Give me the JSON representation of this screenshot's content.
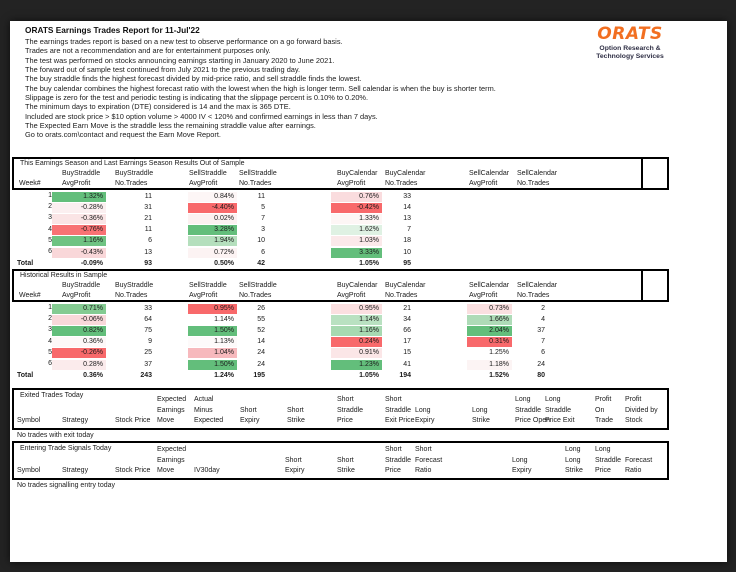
{
  "report": {
    "title": "ORATS Earnings Trades Report for 11-Jul'22",
    "intro_lines": [
      "The earnings trades report is based on a new test to observe performance on a go forward basis.",
      "Trades are not a recommendation and are for entertainment purposes only.",
      "The test was performed on stocks announcing earnings starting in January 2020 to June 2021.",
      "The forward out of sample test continued from July 2021 to the previous trading day.",
      "The buy straddle finds the highest forecast divided by mid-price ratio, and sell straddle finds the lowest.",
      "The buy calendar combines the highest forecast ratio with the lowest when the high is longer term. Sell calendar is when the buy is shorter term.",
      "Slippage is zero for the test and periodic testing is indicating that the slippage percent is 0.10% to 0.20%.",
      "The minimum days to expiration (DTE) considered is 14 and the max is 365 DTE.",
      "Included are stock price > $10 option volume > 4000 IV < 120% and confirmed earnings in less than 7 days.",
      "The Expected Earn Move is the straddle less the remaining straddle value after earnings.",
      "Go to orats.com\\contact and request the Earn Move Report."
    ]
  },
  "logo": {
    "brand": "ORATS",
    "brand_color": "#F26F21",
    "tagline": [
      "Option Research &",
      "Technology Services"
    ]
  },
  "colors": {
    "strong_green": "#63BE7B",
    "strong_red": "#F8696B",
    "border": "#000000",
    "page_bg": "#FFFFFF",
    "backdrop": "#232323"
  },
  "summary_tables": [
    {
      "title": "This Earnings Season and Last Earnings Season Results Out of Sample",
      "group_headers": [
        "BuyStraddle",
        "BuyStraddle",
        "SellStraddle",
        "SellStraddle",
        "BuyCalendar",
        "BuyCalendar",
        "SellCalendar",
        "SellCalendar"
      ],
      "sub_headers": [
        "Week#",
        "AvgProfit",
        "No.Trades",
        "AvgProfit",
        "No.Trades",
        "AvgProfit",
        "No.Trades",
        "AvgProfit",
        "No.Trades"
      ],
      "rows": [
        {
          "week": "1",
          "values": [
            "1.32%",
            "11",
            "0.84%",
            "11",
            "0.76%",
            "33",
            "",
            ""
          ],
          "fills": [
            "#63BE7B",
            null,
            "#FDF6F6",
            null,
            "#FADCDE",
            null,
            null,
            null
          ]
        },
        {
          "week": "2",
          "values": [
            "-0.28%",
            "31",
            "-4.40%",
            "5",
            "-0.42%",
            "14",
            "",
            ""
          ],
          "fills": [
            "#FBEFF0",
            null,
            "#F8696B",
            null,
            "#F8696B",
            null,
            null,
            null
          ]
        },
        {
          "week": "3",
          "values": [
            "-0.36%",
            "21",
            "0.02%",
            "7",
            "1.33%",
            "13",
            "",
            ""
          ],
          "fills": [
            "#FAE4E5",
            null,
            "#FCF1F1",
            null,
            "#FDF6F5",
            null,
            null,
            null
          ]
        },
        {
          "week": "4",
          "values": [
            "-0.76%",
            "11",
            "3.28%",
            "3",
            "1.62%",
            "7",
            "",
            ""
          ],
          "fills": [
            "#F87274",
            null,
            "#63BE7B",
            null,
            "#DFF1E3",
            null,
            null,
            null
          ]
        },
        {
          "week": "5",
          "values": [
            "1.16%",
            "6",
            "1.94%",
            "10",
            "1.03%",
            "18",
            "",
            ""
          ],
          "fills": [
            "#6FC382",
            null,
            "#B5DFBD",
            null,
            "#FBE9EA",
            null,
            null,
            null
          ]
        },
        {
          "week": "6",
          "values": [
            "-0.43%",
            "13",
            "0.72%",
            "6",
            "3.33%",
            "10",
            "",
            ""
          ],
          "fills": [
            "#F9D7D9",
            null,
            "#FCF3F3",
            null,
            "#63BE7B",
            null,
            null,
            null
          ]
        }
      ],
      "total": {
        "week": "Total",
        "values": [
          "-0.09%",
          "93",
          "0.50%",
          "42",
          "1.05%",
          "95",
          "",
          ""
        ]
      }
    },
    {
      "title": "Historical Results in Sample",
      "group_headers": [
        "BuyStraddle",
        "BuyStraddle",
        "SellStraddle",
        "SellStraddle",
        "BuyCalendar",
        "BuyCalendar",
        "SellCalendar",
        "SellCalendar"
      ],
      "sub_headers": [
        "Week#",
        "AvgProfit",
        "No.Trades",
        "AvgProfit",
        "No.Trades",
        "AvgProfit",
        "No.Trades",
        "AvgProfit",
        "No.Trades"
      ],
      "rows": [
        {
          "week": "1",
          "values": [
            "0.71%",
            "33",
            "0.95%",
            "26",
            "0.95%",
            "21",
            "0.73%",
            "2"
          ],
          "fills": [
            "#84CB92",
            null,
            "#F8696B",
            null,
            "#FBDFE0",
            null,
            "#FADFE0",
            null
          ]
        },
        {
          "week": "2",
          "values": [
            "-0.06%",
            "64",
            "1.14%",
            "55",
            "1.14%",
            "34",
            "1.66%",
            "4"
          ],
          "fills": [
            "#F9D8DA",
            null,
            null,
            null,
            "#B9E1C1",
            null,
            "#AEDBB7",
            null
          ]
        },
        {
          "week": "3",
          "values": [
            "0.82%",
            "75",
            "1.50%",
            "52",
            "1.16%",
            "66",
            "2.04%",
            "37"
          ],
          "fills": [
            "#63BE7B",
            null,
            "#63BE7B",
            null,
            "#A7D9B1",
            null,
            "#63BE7B",
            null
          ]
        },
        {
          "week": "4",
          "values": [
            "0.36%",
            "9",
            "1.13%",
            "14",
            "0.24%",
            "17",
            "0.31%",
            "7"
          ],
          "fills": [
            "#FDF8F8",
            null,
            "#FDFAFA",
            null,
            "#F8696B",
            null,
            "#F8696B",
            null
          ]
        },
        {
          "week": "5",
          "values": [
            "-0.26%",
            "25",
            "1.04%",
            "24",
            "0.91%",
            "15",
            "1.25%",
            "6"
          ],
          "fills": [
            "#F8696B",
            null,
            "#F7B9BD",
            null,
            "#FBE6E7",
            null,
            null,
            null
          ]
        },
        {
          "week": "6",
          "values": [
            "0.28%",
            "37",
            "1.50%",
            "24",
            "1.23%",
            "41",
            "1.18%",
            "24"
          ],
          "fills": [
            "#FBEBEC",
            null,
            "#63BE7B",
            null,
            "#63BE7B",
            null,
            "#FCF4F4",
            null
          ]
        }
      ],
      "total": {
        "week": "Total",
        "values": [
          "0.36%",
          "243",
          "1.24%",
          "195",
          "1.05%",
          "194",
          "1.52%",
          "80"
        ]
      }
    }
  ],
  "trade_tables": [
    {
      "title": "Exited Trades Today",
      "columns": [
        [
          "Symbol"
        ],
        [
          "Strategy"
        ],
        [
          "Stock Price"
        ],
        [
          "Expected",
          "Earnings",
          "Move"
        ],
        [
          "Actual",
          "Minus",
          "Expected"
        ],
        [
          "Short",
          "Expiry"
        ],
        [
          "Short",
          "Strike"
        ],
        [
          "Short",
          "Straddle",
          "Price"
        ],
        [
          "Short",
          "Straddle",
          "Exit Price"
        ],
        [
          "Long",
          "Expiry"
        ],
        [
          "Long",
          "Strike"
        ],
        [
          "Long",
          "Straddle",
          "Price Open"
        ],
        [
          "Long",
          "Straddle",
          "Price Exit"
        ],
        [
          "Profit",
          "On",
          "Trade"
        ],
        [
          "Profit",
          "Divided by",
          "Stock"
        ]
      ],
      "note": "No trades with exit today"
    },
    {
      "title": "Entering Trade Signals Today",
      "columns": [
        [
          "Symbol"
        ],
        [
          "Strategy"
        ],
        [
          "Stock Price"
        ],
        [
          "Expected",
          "Earnings",
          "Move"
        ],
        [
          "IV30day"
        ],
        [
          "Short",
          "Expiry"
        ],
        [
          "Short",
          "Strike"
        ],
        [
          "Short",
          "Straddle",
          "Price"
        ],
        [
          "Short",
          "Forecast",
          "Ratio"
        ],
        [
          "Long",
          "Expiry"
        ],
        [
          "Long",
          "Long",
          "Strike"
        ],
        [
          "Long",
          "Straddle",
          "Price"
        ],
        [
          "Forecast",
          "Ratio"
        ]
      ],
      "note": "No trades signalling entry today"
    }
  ]
}
